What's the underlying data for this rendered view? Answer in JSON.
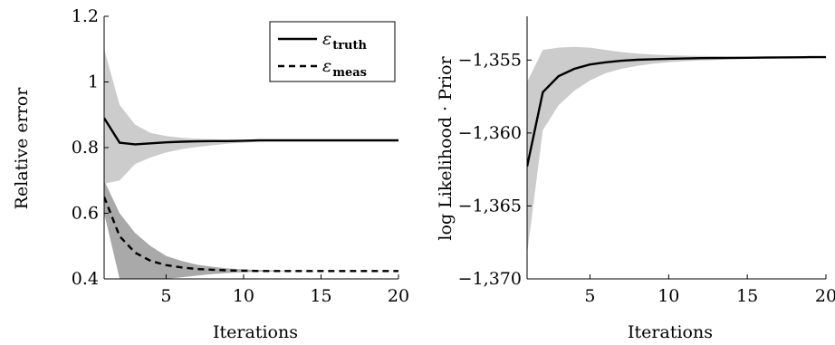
{
  "chart_data": [
    {
      "type": "line",
      "xlabel": "Iterations",
      "ylabel": "Relative error",
      "xlim": [
        1,
        20
      ],
      "ylim": [
        0.4,
        1.2
      ],
      "xticks": [
        "5",
        "10",
        "15",
        "20"
      ],
      "yticks": [
        "0.4",
        "0.6",
        "0.8",
        "1",
        "1.2"
      ],
      "legend_position": "top-right",
      "x": [
        1,
        2,
        3,
        4,
        5,
        6,
        7,
        8,
        9,
        10,
        11,
        12,
        13,
        14,
        15,
        16,
        17,
        18,
        19,
        20
      ],
      "series": [
        {
          "name": "ε",
          "name_sub": "truth",
          "style": "solid",
          "band_color": "#cccccc",
          "values": [
            0.89,
            0.815,
            0.81,
            0.813,
            0.816,
            0.818,
            0.819,
            0.82,
            0.82,
            0.821,
            0.822,
            0.822,
            0.822,
            0.822,
            0.822,
            0.822,
            0.822,
            0.822,
            0.822,
            0.822
          ],
          "upper": [
            1.1,
            0.93,
            0.87,
            0.845,
            0.835,
            0.83,
            0.827,
            0.825,
            0.824,
            0.823,
            0.822,
            0.822,
            0.822,
            0.822,
            0.822,
            0.822,
            0.822,
            0.822,
            0.822,
            0.822
          ],
          "lower": [
            0.69,
            0.7,
            0.75,
            0.77,
            0.785,
            0.795,
            0.802,
            0.807,
            0.812,
            0.815,
            0.818,
            0.82,
            0.821,
            0.822,
            0.822,
            0.822,
            0.822,
            0.822,
            0.822,
            0.822
          ]
        },
        {
          "name": "ε",
          "name_sub": "meas",
          "style": "dashed",
          "band_color": "#a9a9a9",
          "values": [
            0.65,
            0.53,
            0.48,
            0.455,
            0.442,
            0.435,
            0.43,
            0.428,
            0.426,
            0.425,
            0.424,
            0.424,
            0.424,
            0.424,
            0.424,
            0.424,
            0.424,
            0.424,
            0.424,
            0.424
          ],
          "upper": [
            0.7,
            0.6,
            0.54,
            0.5,
            0.47,
            0.455,
            0.443,
            0.437,
            0.432,
            0.429,
            0.427,
            0.426,
            0.425,
            0.425,
            0.424,
            0.424,
            0.424,
            0.424,
            0.424,
            0.424
          ],
          "lower": [
            0.6,
            0.4,
            0.4,
            0.4,
            0.4,
            0.405,
            0.41,
            0.415,
            0.418,
            0.42,
            0.422,
            0.423,
            0.424,
            0.424,
            0.424,
            0.424,
            0.424,
            0.424,
            0.424,
            0.424
          ]
        }
      ]
    },
    {
      "type": "line",
      "xlabel": "Iterations",
      "ylabel": "log Likelihood · Prior",
      "xlim": [
        1,
        20
      ],
      "ylim": [
        -1370,
        -1352
      ],
      "xticks": [
        "5",
        "10",
        "15",
        "20"
      ],
      "yticks": [
        "−1,370",
        "−1,365",
        "−1,360",
        "−1,355"
      ],
      "ytick_values": [
        -1370,
        -1365,
        -1360,
        -1355
      ],
      "x": [
        1,
        2,
        3,
        4,
        5,
        6,
        7,
        8,
        9,
        10,
        11,
        12,
        13,
        14,
        15,
        16,
        17,
        18,
        19,
        20
      ],
      "series": [
        {
          "style": "solid",
          "band_color": "#cccccc",
          "values": [
            -1362.3,
            -1357.2,
            -1356.1,
            -1355.6,
            -1355.3,
            -1355.15,
            -1355.05,
            -1354.98,
            -1354.94,
            -1354.91,
            -1354.89,
            -1354.87,
            -1354.86,
            -1354.85,
            -1354.84,
            -1354.83,
            -1354.82,
            -1354.81,
            -1354.8,
            -1354.8
          ],
          "upper": [
            -1356.5,
            -1354.3,
            -1354.15,
            -1354.1,
            -1354.15,
            -1354.3,
            -1354.45,
            -1354.55,
            -1354.62,
            -1354.67,
            -1354.7,
            -1354.72,
            -1354.74,
            -1354.76,
            -1354.77,
            -1354.78,
            -1354.79,
            -1354.79,
            -1354.8,
            -1354.8
          ],
          "lower": [
            -1368.3,
            -1359.8,
            -1358.1,
            -1357.1,
            -1356.4,
            -1355.9,
            -1355.6,
            -1355.4,
            -1355.25,
            -1355.15,
            -1355.08,
            -1355.03,
            -1354.99,
            -1354.95,
            -1354.92,
            -1354.89,
            -1354.86,
            -1354.84,
            -1354.82,
            -1354.8
          ]
        }
      ]
    }
  ]
}
